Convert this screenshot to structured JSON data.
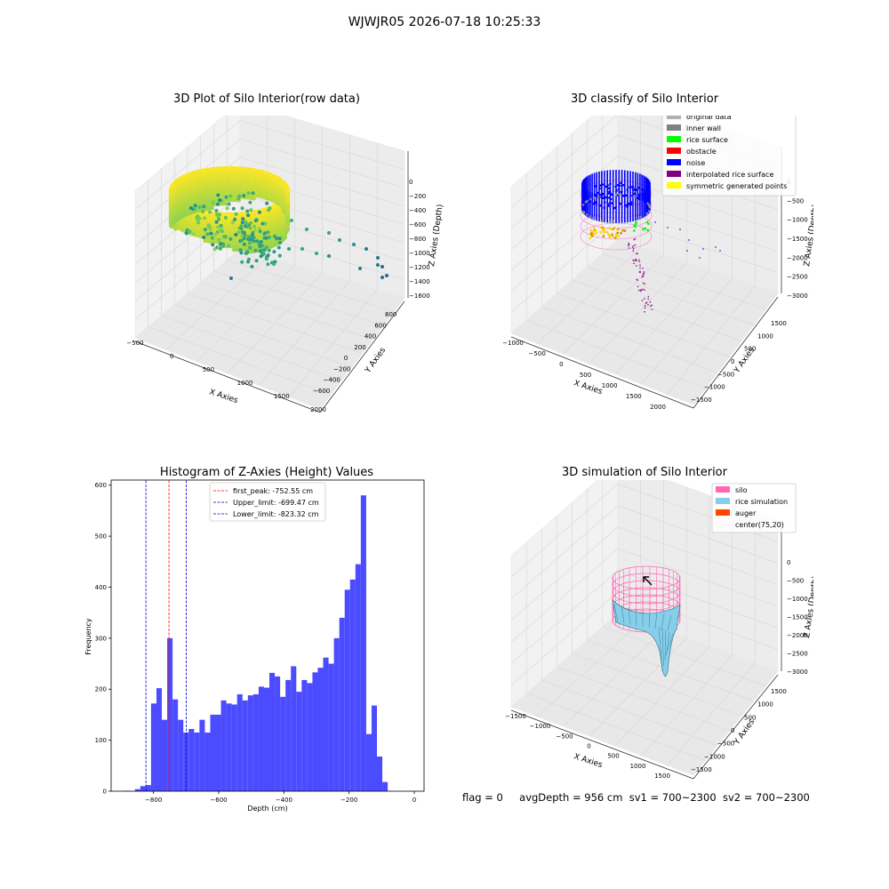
{
  "suptitle": "WJWJR05 2026-07-18 10:25:33",
  "status": {
    "flag": "flag = 0",
    "avg": "avgDepth = 956 cm",
    "sv1": "sv1 = 700~2300",
    "sv2": "sv2 = 700~2300"
  },
  "colors": {
    "hist": "#4b4bff",
    "pane": "#f2f2f2",
    "grid": "#d6d6d6",
    "silo": "#ff69b4",
    "rice": "#87ceeb",
    "auger": "#ff4500"
  },
  "chart_data": [
    {
      "type": "scatter",
      "title": "3D Plot of Silo Interior(row data)",
      "xlabel": "X Axies",
      "ylabel": "Y Axies",
      "zlabel": "Z Axies (Depth)",
      "xticks": [
        "−500",
        "0",
        "500",
        "1000",
        "1500",
        "2000"
      ],
      "yticks": [
        "−600",
        "−400",
        "−200",
        "0",
        "200",
        "400",
        "600",
        "800"
      ],
      "zticks": [
        "0",
        "−200",
        "−400",
        "−600",
        "−800",
        "−1000",
        "−1200",
        "−1400",
        "−1600"
      ],
      "xlim": [
        -600,
        2000
      ],
      "ylim": [
        -650,
        850
      ],
      "zlim": [
        -1700,
        0
      ],
      "colormap": "viridis"
    },
    {
      "type": "scatter",
      "title": "3D classify of Silo Interior",
      "xlabel": "X Axies",
      "ylabel": "Y Axies",
      "zlabel": "Z Axies (Depth)",
      "xticks": [
        "−1000",
        "−500",
        "0",
        "500",
        "1000",
        "1500",
        "2000"
      ],
      "yticks": [
        "−1500",
        "−1000",
        "−500",
        "0",
        "500",
        "1000",
        "1500"
      ],
      "zticks": [
        "0",
        "−500",
        "−1000",
        "−1500",
        "−2000",
        "−2500",
        "−3000"
      ],
      "legend": [
        {
          "label": "original data",
          "color": "#b0b0b0"
        },
        {
          "label": "inner wall",
          "color": "#808080"
        },
        {
          "label": "rice surface",
          "color": "#00ff00"
        },
        {
          "label": "obstacle",
          "color": "#ff0000"
        },
        {
          "label": "noise",
          "color": "#0000ff"
        },
        {
          "label": "interpolated rice surface",
          "color": "#800080"
        },
        {
          "label": "symmetric generated points",
          "color": "#ffff00"
        }
      ],
      "legend_loc": "upper right"
    },
    {
      "type": "bar",
      "title": "Histogram of Z-Axies (Height) Values",
      "xlabel": "Depth (cm)",
      "ylabel": "Frequency",
      "xlim": [
        -930,
        30
      ],
      "ylim": [
        0,
        610
      ],
      "xticks": [
        -800,
        -600,
        -400,
        -200,
        0
      ],
      "yticks": [
        0,
        100,
        200,
        300,
        400,
        500,
        600
      ],
      "bin_width": 16.5,
      "bin_start": -890,
      "values": [
        1,
        0,
        4,
        10,
        12,
        172,
        202,
        140,
        300,
        180,
        140,
        115,
        122,
        115,
        140,
        115,
        150,
        150,
        178,
        172,
        170,
        190,
        178,
        188,
        190,
        205,
        203,
        232,
        225,
        185,
        218,
        245,
        195,
        218,
        212,
        233,
        242,
        262,
        250,
        300,
        340,
        395,
        415,
        445,
        580,
        112,
        168,
        68,
        18
      ],
      "vlines": [
        {
          "label": "first_peak: -752.55 cm",
          "x": -752.55,
          "color": "#ff0000"
        },
        {
          "label": "Upper_limit: -699.47 cm",
          "x": -699.47,
          "color": "#0000cc"
        },
        {
          "label": "Lower_limit: -823.32 cm",
          "x": -823.32,
          "color": "#0000cc"
        }
      ],
      "legend_loc": "upper center"
    },
    {
      "type": "surface",
      "title": "3D simulation of Silo Interior",
      "xlabel": "X Axies",
      "ylabel": "Y Axies",
      "zlabel": "Z Axies (Depth)",
      "xticks": [
        "−1500",
        "−1000",
        "−500",
        "0",
        "500",
        "1000",
        "1500"
      ],
      "yticks": [
        "−1500",
        "−1000",
        "−500",
        "0",
        "500",
        "1000",
        "1500"
      ],
      "zticks": [
        "0",
        "−500",
        "−1000",
        "−1500",
        "−2000",
        "−2500",
        "−3000"
      ],
      "legend": [
        {
          "label": "silo",
          "color": "#ff69b4"
        },
        {
          "label": "rice simulation",
          "color": "#87ceeb"
        },
        {
          "label": "auger",
          "color": "#ff4500"
        },
        {
          "label": "center(75,20)",
          "color": ""
        }
      ],
      "legend_loc": "upper right"
    }
  ]
}
